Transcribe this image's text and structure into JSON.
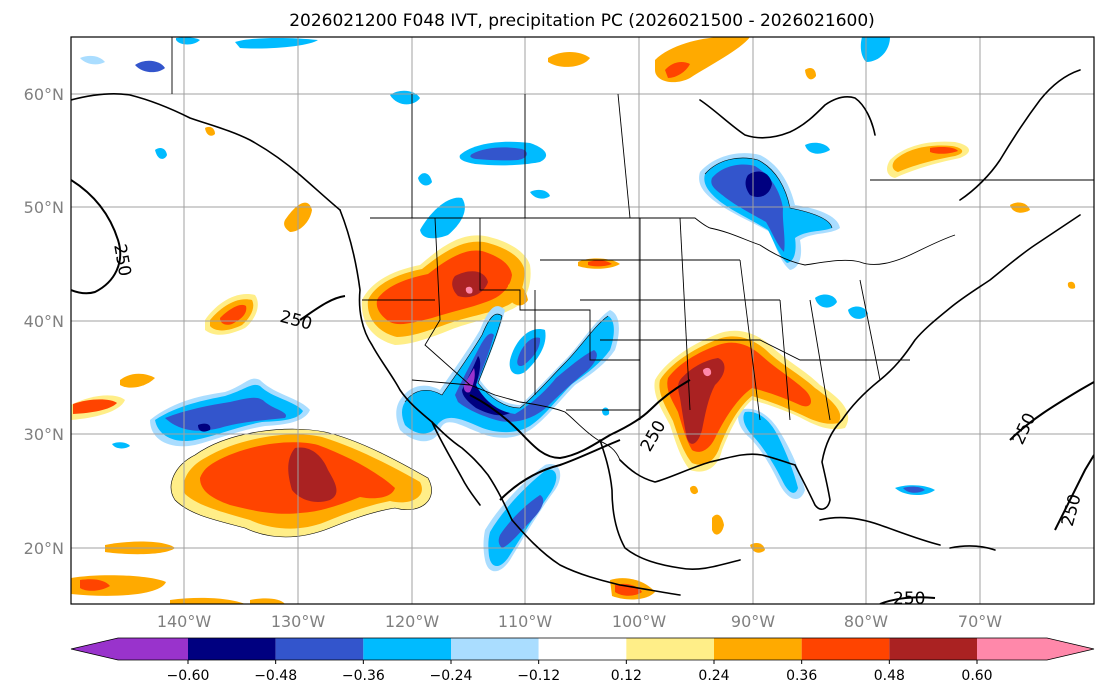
{
  "title": "2026021200 F048 IVT, precipitation PC (2026021500 - 2026021600)",
  "map": {
    "lat_labels": [
      "60°N",
      "50°N",
      "40°N",
      "30°N",
      "20°N"
    ],
    "lon_labels": [
      "140°W",
      "130°W",
      "120°W",
      "110°W",
      "100°W",
      "90°W",
      "80°W",
      "70°W"
    ],
    "ivt_contour_value": "250",
    "ivt_labels": [
      "250",
      "250",
      "250",
      "250",
      "250",
      "250"
    ]
  },
  "colorbar": {
    "ticks": [
      "−0.60",
      "−0.48",
      "−0.36",
      "−0.24",
      "−0.12",
      "0.12",
      "0.24",
      "0.36",
      "0.48",
      "0.60"
    ],
    "colors": [
      "#9933cc",
      "#000080",
      "#3355cc",
      "#00bbff",
      "#aaddff",
      "#ffffff",
      "#ffee88",
      "#ffaa00",
      "#ff4400",
      "#aa2222",
      "#ff88aa"
    ]
  },
  "colors": {
    "neg_strong": "#000080",
    "neg_mid": "#3355cc",
    "neg_light": "#00bbff",
    "neg_pale": "#aaddff",
    "pos_pale": "#ffee88",
    "pos_light": "#ffaa00",
    "pos_mid": "#ff4400",
    "pos_strong": "#aa2222",
    "pos_extreme": "#ff88aa",
    "neg_extreme": "#9933cc"
  }
}
